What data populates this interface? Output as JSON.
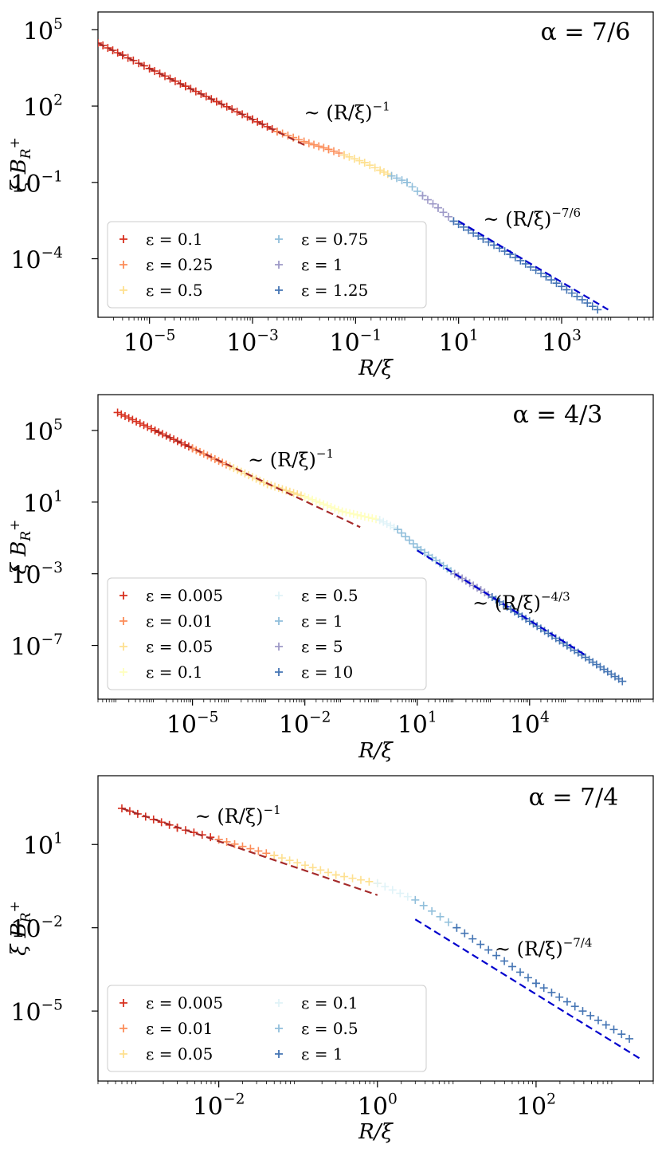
{
  "chart_data": [
    {
      "type": "scatter",
      "log_x": true,
      "log_y": true,
      "xlim": [
        1e-06,
        60000
      ],
      "ylim": [
        5e-07,
        500000
      ],
      "xticks": [
        1e-05,
        0.001,
        0.1,
        10,
        1000
      ],
      "xtick_labels": [
        "10^-5",
        "10^-3",
        "10^-1",
        "10^1",
        "10^3"
      ],
      "yticks": [
        0.0001,
        0.1,
        100,
        100000
      ],
      "ytick_labels": [
        "10^-4",
        "10^-1",
        "10^2",
        "10^5"
      ],
      "xlabel": "R/ξ",
      "ylabel": "ξ B_R^+",
      "alpha_label": "α = 7/6",
      "legend_loc": "lower-left",
      "series": [
        {
          "name": "ε = 0.1",
          "color": "#d7301f",
          "points": [
            [
              1e-06,
              30000
            ],
            [
              3e-06,
              10000
            ],
            [
              1e-05,
              3000
            ],
            [
              5e-05,
              600
            ],
            [
              0.0002,
              150
            ],
            [
              0.001,
              30
            ],
            [
              0.003,
              10
            ]
          ]
        },
        {
          "name": "ε = 0.25",
          "color": "#fc8d59",
          "points": [
            [
              0.003,
              10
            ],
            [
              0.01,
              4
            ],
            [
              0.03,
              2
            ],
            [
              0.06,
              1.2
            ]
          ]
        },
        {
          "name": "ε = 0.5",
          "color": "#fee090",
          "points": [
            [
              0.06,
              1.2
            ],
            [
              0.15,
              0.6
            ],
            [
              0.3,
              0.3
            ],
            [
              0.5,
              0.18
            ]
          ]
        },
        {
          "name": "ε = 0.75",
          "color": "#91bfdb",
          "points": [
            [
              0.5,
              0.18
            ],
            [
              1,
              0.1
            ],
            [
              2,
              0.03
            ]
          ]
        },
        {
          "name": "ε = 1",
          "color": "#9e9ac8",
          "points": [
            [
              2,
              0.03
            ],
            [
              4,
              0.01
            ],
            [
              8,
              0.003
            ]
          ]
        },
        {
          "name": "ε = 1.25",
          "color": "#4575b4",
          "points": [
            [
              8,
              0.003
            ],
            [
              30,
              0.0006
            ],
            [
              100,
              0.00015
            ],
            [
              500,
              2e-05
            ],
            [
              5000,
              1e-06
            ]
          ]
        }
      ],
      "fit_lines": [
        {
          "color": "#a52a2a",
          "from": [
            1e-06,
            30000
          ],
          "to": [
            0.01,
            3
          ]
        },
        {
          "color": "#0000cd",
          "from": [
            10,
            0.003
          ],
          "to": [
            8000,
            1e-06
          ]
        }
      ],
      "annotations": [
        {
          "text": "~ (R/ξ)",
          "exp": "−1",
          "at": [
            0.01,
            30
          ]
        },
        {
          "text": "~ (R/ξ)",
          "exp": "−7/6",
          "at": [
            30,
            0.002
          ]
        }
      ]
    },
    {
      "type": "scatter",
      "log_x": true,
      "log_y": true,
      "xlim": [
        3e-08,
        20000000.0
      ],
      "ylim": [
        1e-10,
        10000000.0
      ],
      "xticks": [
        1e-05,
        0.01,
        10,
        10000
      ],
      "xtick_labels": [
        "10^-5",
        "10^-2",
        "10^1",
        "10^4"
      ],
      "yticks": [
        1e-07,
        0.001,
        10,
        100000
      ],
      "ytick_labels": [
        "10^-7",
        "10^-3",
        "10^1",
        "10^5"
      ],
      "xlabel": "R/ξ",
      "ylabel": "ξ B_R^+",
      "alpha_label": "α = 4/3",
      "legend_loc": "lower-left",
      "series": [
        {
          "name": "ε = 0.005",
          "color": "#d7301f",
          "points": [
            [
              1e-07,
              1000000
            ],
            [
              1e-06,
              100000
            ],
            [
              1e-05,
              10000
            ]
          ]
        },
        {
          "name": "ε = 0.01",
          "color": "#fc8d59",
          "points": [
            [
              1e-05,
              10000
            ],
            [
              0.0001,
              1000
            ]
          ]
        },
        {
          "name": "ε = 0.05",
          "color": "#fee090",
          "points": [
            [
              0.0001,
              1000
            ],
            [
              0.001,
              100
            ],
            [
              0.01,
              20
            ]
          ]
        },
        {
          "name": "ε = 0.1",
          "color": "#ffffbf",
          "points": [
            [
              0.01,
              20
            ],
            [
              0.1,
              3
            ],
            [
              1,
              1
            ]
          ]
        },
        {
          "name": "ε = 0.5",
          "color": "#e0f3f8",
          "points": [
            [
              1,
              1
            ],
            [
              3,
              0.3
            ]
          ]
        },
        {
          "name": "ε = 1",
          "color": "#91bfdb",
          "points": [
            [
              3,
              0.3
            ],
            [
              10,
              0.03
            ],
            [
              100,
              0.001
            ]
          ]
        },
        {
          "name": "ε = 5",
          "color": "#9e9ac8",
          "points": [
            [
              100,
              0.001
            ],
            [
              1000,
              5e-05
            ]
          ]
        },
        {
          "name": "ε = 10",
          "color": "#4575b4",
          "points": [
            [
              1000,
              5e-05
            ],
            [
              100000,
              1e-07
            ],
            [
              3000000,
              1e-09
            ]
          ]
        }
      ],
      "fit_lines": [
        {
          "color": "#a52a2a",
          "from": [
            1e-06,
            100000
          ],
          "to": [
            0.3,
            0.4
          ]
        },
        {
          "color": "#0000cd",
          "from": [
            10,
            0.02
          ],
          "to": [
            300000,
            3e-08
          ]
        }
      ],
      "annotations": [
        {
          "text": "~ (R/ξ)",
          "exp": "−1",
          "at": [
            0.0003,
            1000
          ]
        },
        {
          "text": "~ (R/ξ)",
          "exp": "−4/3",
          "at": [
            300,
            1e-05
          ]
        }
      ]
    },
    {
      "type": "scatter",
      "log_x": true,
      "log_y": true,
      "xlim": [
        0.0003,
        3000
      ],
      "ylim": [
        3e-08,
        3000
      ],
      "xticks": [
        0.01,
        1,
        100
      ],
      "xtick_labels": [
        "10^-2",
        "10^0",
        "10^2"
      ],
      "yticks": [
        1e-05,
        0.01,
        10
      ],
      "ytick_labels": [
        "10^-5",
        "10^-2",
        "10^1"
      ],
      "xlabel": "R/ξ",
      "ylabel": "ξ B_R^+",
      "alpha_label": "α = 7/4",
      "legend_loc": "lower-left",
      "series": [
        {
          "name": "ε = 0.005",
          "color": "#d7301f",
          "points": [
            [
              0.0006,
              200
            ],
            [
              0.003,
              40
            ],
            [
              0.01,
              15
            ]
          ]
        },
        {
          "name": "ε = 0.01",
          "color": "#fc8d59",
          "points": [
            [
              0.01,
              15
            ],
            [
              0.05,
              4
            ]
          ]
        },
        {
          "name": "ε = 0.05",
          "color": "#fee090",
          "points": [
            [
              0.05,
              4
            ],
            [
              0.3,
              0.8
            ],
            [
              1,
              0.4
            ]
          ]
        },
        {
          "name": "ε = 0.1",
          "color": "#e0f3f8",
          "points": [
            [
              1,
              0.4
            ],
            [
              3,
              0.1
            ]
          ]
        },
        {
          "name": "ε = 0.5",
          "color": "#91bfdb",
          "points": [
            [
              3,
              0.1
            ],
            [
              10,
              0.01
            ]
          ]
        },
        {
          "name": "ε = 1",
          "color": "#4575b4",
          "points": [
            [
              10,
              0.01
            ],
            [
              100,
              0.0001
            ],
            [
              1500,
              1e-06
            ]
          ]
        }
      ],
      "fit_lines": [
        {
          "color": "#a52a2a",
          "from": [
            0.0006,
            200
          ],
          "to": [
            1,
            0.15
          ]
        },
        {
          "color": "#0000cd",
          "from": [
            3,
            0.02
          ],
          "to": [
            2000,
            2e-07
          ]
        }
      ],
      "annotations": [
        {
          "text": "~ (R/ξ)",
          "exp": "−1",
          "at": [
            0.005,
            60
          ]
        },
        {
          "text": "~ (R/ξ)",
          "exp": "−7/4",
          "at": [
            30,
            0.001
          ]
        }
      ]
    }
  ]
}
